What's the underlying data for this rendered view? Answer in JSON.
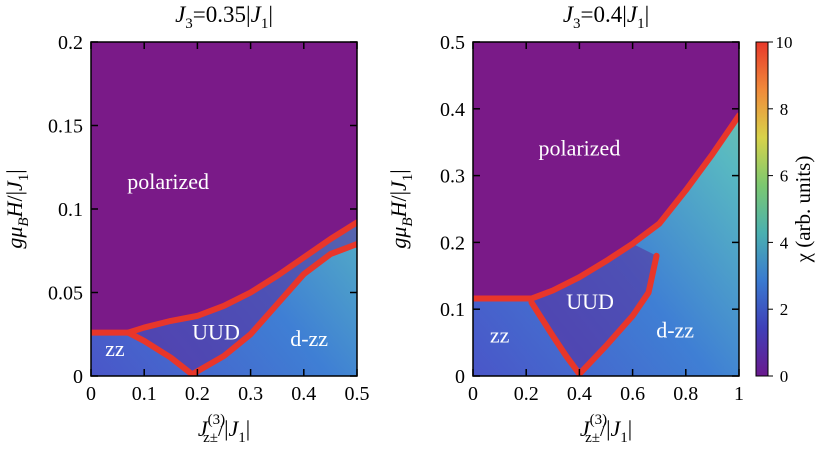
{
  "chart_data": [
    {
      "type": "heatmap",
      "title": "J3=0.35|J1|",
      "title_parts": {
        "main": "J",
        "sub": "3",
        "rest": "=0.35|",
        "main2": "J",
        "sub2": "1",
        "end": "|"
      },
      "xlabel": "J_z±^(3)/|J_1|",
      "ylabel": "gμ_B H/|J_1|",
      "xlim": [
        0,
        0.5
      ],
      "ylim": [
        0,
        0.2
      ],
      "xticks": [
        "0",
        "0.1",
        "0.2",
        "0.3",
        "0.4",
        "0.5"
      ],
      "xtick_values": [
        0,
        0.1,
        0.2,
        0.3,
        0.4,
        0.5
      ],
      "yticks": [
        "0",
        "0.05",
        "0.1",
        "0.15",
        "0.2"
      ],
      "ytick_values": [
        0,
        0.05,
        0.1,
        0.15,
        0.2
      ],
      "regions": [
        {
          "label": "polarized",
          "x": 0.145,
          "y": 0.112
        },
        {
          "label": "UUD",
          "x": 0.235,
          "y": 0.022
        },
        {
          "label": "zz",
          "x": 0.045,
          "y": 0.012
        },
        {
          "label": "d-zz",
          "x": 0.41,
          "y": 0.018
        }
      ],
      "boundaries": [
        {
          "name": "upper",
          "x": [
            0,
            0.07,
            0.1,
            0.15,
            0.2,
            0.25,
            0.3,
            0.35,
            0.4,
            0.45,
            0.5
          ],
          "y": [
            0.026,
            0.026,
            0.029,
            0.033,
            0.036,
            0.042,
            0.05,
            0.06,
            0.071,
            0.082,
            0.092
          ]
        },
        {
          "name": "left-dome",
          "x": [
            0.07,
            0.1,
            0.15,
            0.19
          ],
          "y": [
            0.026,
            0.021,
            0.011,
            0.001
          ]
        },
        {
          "name": "right-dome",
          "x": [
            0.19,
            0.25,
            0.3,
            0.35,
            0.4,
            0.45,
            0.5
          ],
          "y": [
            0.001,
            0.012,
            0.025,
            0.043,
            0.061,
            0.073,
            0.079
          ]
        }
      ]
    },
    {
      "type": "heatmap",
      "title": "J3=0.4|J1|",
      "title_parts": {
        "main": "J",
        "sub": "3",
        "rest": "=0.4|",
        "main2": "J",
        "sub2": "1",
        "end": "|"
      },
      "xlabel": "J_z±^(3)/|J_1|",
      "ylabel": "gμ_B H/|J_1|",
      "xlim": [
        0,
        1
      ],
      "ylim": [
        0,
        0.5
      ],
      "xticks": [
        "0",
        "0.2",
        "0.4",
        "0.6",
        "0.8",
        "1"
      ],
      "xtick_values": [
        0,
        0.2,
        0.4,
        0.6,
        0.8,
        1
      ],
      "yticks": [
        "0",
        "0.1",
        "0.2",
        "0.3",
        "0.4",
        "0.5"
      ],
      "ytick_values": [
        0,
        0.1,
        0.2,
        0.3,
        0.4,
        0.5
      ],
      "regions": [
        {
          "label": "polarized",
          "x": 0.4,
          "y": 0.33
        },
        {
          "label": "UUD",
          "x": 0.44,
          "y": 0.1
        },
        {
          "label": "zz",
          "x": 0.1,
          "y": 0.05
        },
        {
          "label": "d-zz",
          "x": 0.76,
          "y": 0.058
        }
      ],
      "boundaries": [
        {
          "name": "upper",
          "x": [
            0,
            0.22,
            0.3,
            0.4,
            0.5,
            0.6,
            0.7,
            0.8,
            0.9,
            1.0
          ],
          "y": [
            0.116,
            0.116,
            0.128,
            0.148,
            0.172,
            0.198,
            0.228,
            0.278,
            0.332,
            0.39
          ]
        },
        {
          "name": "left-dome",
          "x": [
            0.22,
            0.3,
            0.35,
            0.4
          ],
          "y": [
            0.11,
            0.06,
            0.03,
            0.003
          ]
        },
        {
          "name": "right-dome",
          "x": [
            0.4,
            0.5,
            0.6,
            0.66,
            0.69
          ],
          "y": [
            0.003,
            0.045,
            0.09,
            0.125,
            0.18
          ]
        }
      ]
    }
  ],
  "colorbar": {
    "label": "χ (arb. units)",
    "min": 0,
    "max": 10,
    "ticks": [
      "0",
      "2",
      "4",
      "6",
      "8",
      "10"
    ],
    "tick_values": [
      0,
      2,
      4,
      6,
      8,
      10
    ],
    "colormap": [
      "#6a1a8e",
      "#3f3fb8",
      "#3a7ad0",
      "#4ab0b0",
      "#7cc870",
      "#d8d24a",
      "#f08a3a",
      "#e8382a"
    ]
  },
  "colors": {
    "polarized": "#7a1a88",
    "boundary": "#e8362a",
    "background": "#ffffff"
  }
}
